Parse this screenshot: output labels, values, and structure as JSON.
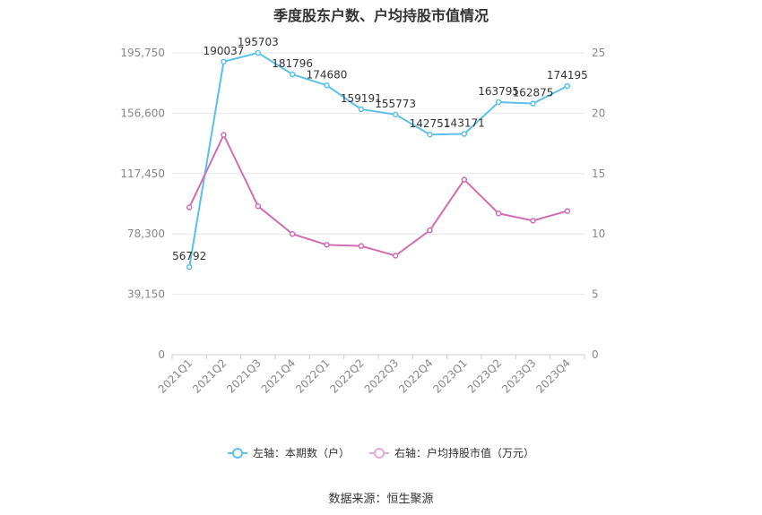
{
  "chart_data": {
    "type": "line",
    "title": "季度股东户数、户均持股市值情况",
    "categories": [
      "2021Q1",
      "2021Q2",
      "2021Q3",
      "2021Q4",
      "2022Q1",
      "2022Q2",
      "2022Q3",
      "2022Q4",
      "2023Q1",
      "2023Q2",
      "2023Q3",
      "2023Q4"
    ],
    "series": [
      {
        "name": "左轴：本期数（户）",
        "axis": "left",
        "color": "#5bc0eb",
        "values": [
          56792,
          190037,
          195703,
          181796,
          174680,
          159191,
          155773,
          142751,
          143171,
          163795,
          162875,
          174195
        ],
        "labels": [
          "56792",
          "190037",
          "195703",
          "181796",
          "174680",
          "159191",
          "155773",
          "142751",
          "143171",
          "163795",
          "162875",
          "174195"
        ]
      },
      {
        "name": "右轴：户均持股市值（万元）",
        "axis": "right",
        "color": "#d16eb2",
        "values": [
          12.2,
          18.2,
          12.3,
          10.0,
          9.1,
          9.0,
          8.2,
          10.3,
          14.5,
          11.7,
          11.1,
          11.9
        ]
      }
    ],
    "y_left": {
      "ticks": [
        "0",
        "39,150",
        "78,300",
        "117,450",
        "156,600",
        "195,750"
      ],
      "range": [
        0,
        195750
      ]
    },
    "y_right": {
      "ticks": [
        "0",
        "5",
        "10",
        "15",
        "20",
        "25"
      ],
      "range": [
        0,
        25
      ]
    },
    "grid": true,
    "legend": "bottom"
  },
  "source": "数据来源：恒生聚源"
}
